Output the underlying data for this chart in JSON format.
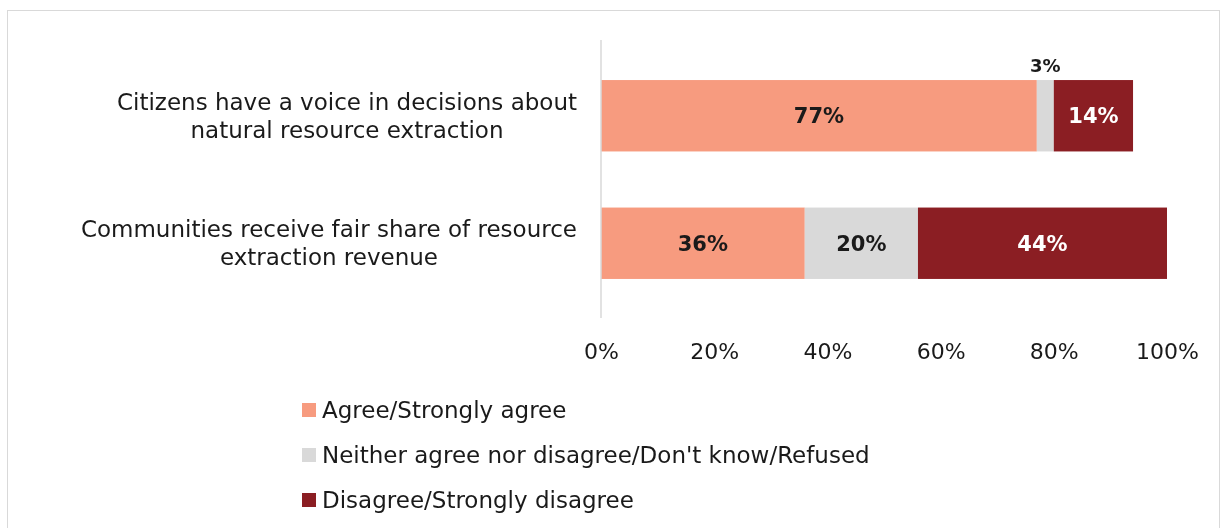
{
  "chart_data": {
    "type": "bar",
    "orientation": "horizontal",
    "stacked": true,
    "categories": [
      "Citizens have a voice in decisions about natural resource extraction",
      "Communities receive fair share of resource extraction revenue"
    ],
    "series": [
      {
        "name": "Agree/Strongly agree",
        "color": "#f79b7f",
        "values": [
          77,
          36
        ],
        "value_labels": [
          "77%",
          "36%"
        ]
      },
      {
        "name": "Neither agree nor disagree/Don't know/Refused",
        "color": "#d9d9d9",
        "values": [
          3,
          20
        ],
        "value_labels": [
          "3%",
          "20%"
        ]
      },
      {
        "name": "Disagree/Strongly disagree",
        "color": "#8b1e23",
        "values": [
          14,
          44
        ],
        "value_labels": [
          "14%",
          "44%"
        ]
      }
    ],
    "xlim": [
      0,
      100
    ],
    "xticks": [
      {
        "value": 0,
        "label": "0%"
      },
      {
        "value": 20,
        "label": "20%"
      },
      {
        "value": 40,
        "label": "40%"
      },
      {
        "value": 60,
        "label": "60%"
      },
      {
        "value": 80,
        "label": "80%"
      },
      {
        "value": 100,
        "label": "100%"
      }
    ],
    "grid": false,
    "legend": "bottom"
  }
}
